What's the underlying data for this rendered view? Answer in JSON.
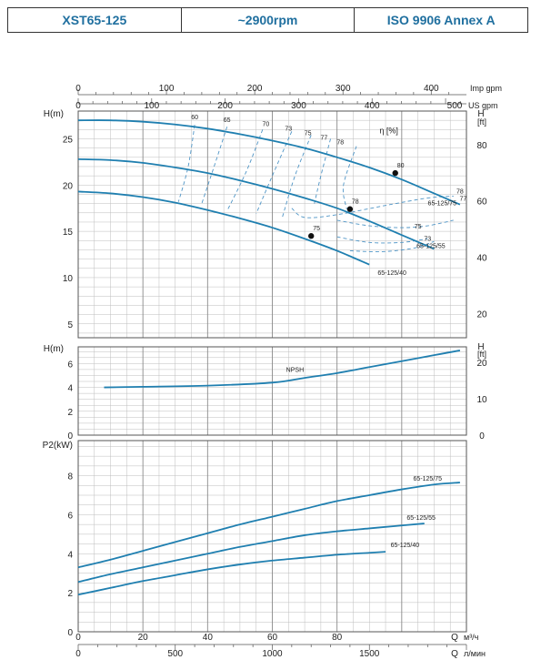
{
  "header": {
    "model": "XST65-125",
    "speed": "~2900rpm",
    "standard": "ISO 9906   Annex A"
  },
  "colors": {
    "curve": "#1f7fb0",
    "efficiency": "#4f95c6",
    "grid": "#bdbdbd",
    "frame": "#555555"
  },
  "axes": {
    "imp_gpm": {
      "ticks": [
        0,
        100,
        200,
        300,
        400
      ],
      "unit": "Imp gpm"
    },
    "us_gpm": {
      "ticks": [
        0,
        100,
        200,
        300,
        400,
        500
      ],
      "unit": "US gpm",
      "last_label": "500"
    },
    "q_m3h": {
      "ticks": [
        0,
        20,
        40,
        60,
        80
      ],
      "unit": "Q  м³/ч"
    },
    "q_lmin": {
      "ticks": [
        0,
        500,
        1000,
        1500
      ],
      "unit": "Q  л/мин"
    }
  },
  "chart_data": [
    {
      "type": "line",
      "panel": "head",
      "ylabel": "H(m)",
      "ylabel_right": "H [ft]",
      "yticks": [
        5,
        10,
        15,
        20,
        25
      ],
      "yticks_right": [
        20,
        40,
        60,
        80
      ],
      "ylim": [
        3.5,
        28
      ],
      "xlim": [
        0,
        120
      ],
      "efficiency_label": "η [%]",
      "series": [
        {
          "name": "65-125/75",
          "x": [
            0,
            10,
            20,
            30,
            40,
            50,
            60,
            70,
            80,
            90,
            100,
            110,
            118
          ],
          "y": [
            27,
            27,
            26.85,
            26.55,
            26.1,
            25.5,
            24.8,
            24,
            23,
            21.9,
            20.6,
            19.1,
            17.9
          ]
        },
        {
          "name": "65-125/55",
          "x": [
            0,
            10,
            20,
            30,
            40,
            50,
            60,
            70,
            80,
            90,
            100,
            110
          ],
          "y": [
            22.8,
            22.7,
            22.4,
            21.9,
            21.3,
            20.5,
            19.6,
            18.6,
            17.5,
            16.1,
            14.6,
            13.1
          ]
        },
        {
          "name": "65-125/40",
          "x": [
            0,
            10,
            20,
            30,
            40,
            50,
            60,
            70,
            80,
            90
          ],
          "y": [
            19.3,
            19.1,
            18.7,
            18.1,
            17.3,
            16.4,
            15.4,
            14.2,
            12.9,
            11.4
          ]
        }
      ],
      "efficiency_labels": [
        "60",
        "65",
        "70",
        "73",
        "75",
        "77",
        "78",
        "78",
        "77",
        "75",
        "73"
      ],
      "best_efficiency_points": [
        {
          "label": "80",
          "x": 98,
          "y": 21.3
        },
        {
          "label": "78",
          "x": 84,
          "y": 17.4
        },
        {
          "label": "75",
          "x": 72,
          "y": 14.5
        }
      ]
    },
    {
      "type": "line",
      "panel": "npsh",
      "ylabel": "H(m)",
      "ylabel_right": "H [ft]",
      "yticks": [
        0,
        2,
        4,
        6
      ],
      "yticks_right": [
        0,
        10,
        20
      ],
      "ylim": [
        0,
        7.4
      ],
      "series": [
        {
          "name": "NPSH",
          "x": [
            8,
            20,
            40,
            60,
            70,
            80,
            90,
            100,
            110,
            118
          ],
          "y": [
            4,
            4.05,
            4.15,
            4.4,
            4.8,
            5.2,
            5.7,
            6.2,
            6.7,
            7.1
          ]
        }
      ]
    },
    {
      "type": "line",
      "panel": "power",
      "ylabel": "P2(kW)",
      "yticks": [
        0,
        2,
        4,
        6,
        8
      ],
      "ylim": [
        0,
        9.8
      ],
      "xlim": [
        0,
        120
      ],
      "series": [
        {
          "name": "65-125/75",
          "x": [
            0,
            10,
            20,
            30,
            40,
            50,
            60,
            70,
            80,
            90,
            100,
            110,
            118
          ],
          "y": [
            3.3,
            3.7,
            4.15,
            4.6,
            5.05,
            5.5,
            5.9,
            6.3,
            6.7,
            7.0,
            7.3,
            7.55,
            7.65
          ]
        },
        {
          "name": "65-125/55",
          "x": [
            0,
            10,
            20,
            30,
            40,
            50,
            60,
            70,
            80,
            90,
            100,
            107
          ],
          "y": [
            2.55,
            2.95,
            3.3,
            3.65,
            4.0,
            4.35,
            4.65,
            4.95,
            5.15,
            5.3,
            5.45,
            5.55
          ]
        },
        {
          "name": "65-125/40",
          "x": [
            0,
            10,
            20,
            30,
            40,
            50,
            60,
            70,
            80,
            90,
            95
          ],
          "y": [
            1.9,
            2.25,
            2.6,
            2.9,
            3.2,
            3.45,
            3.65,
            3.8,
            3.95,
            4.05,
            4.1
          ]
        }
      ]
    }
  ]
}
